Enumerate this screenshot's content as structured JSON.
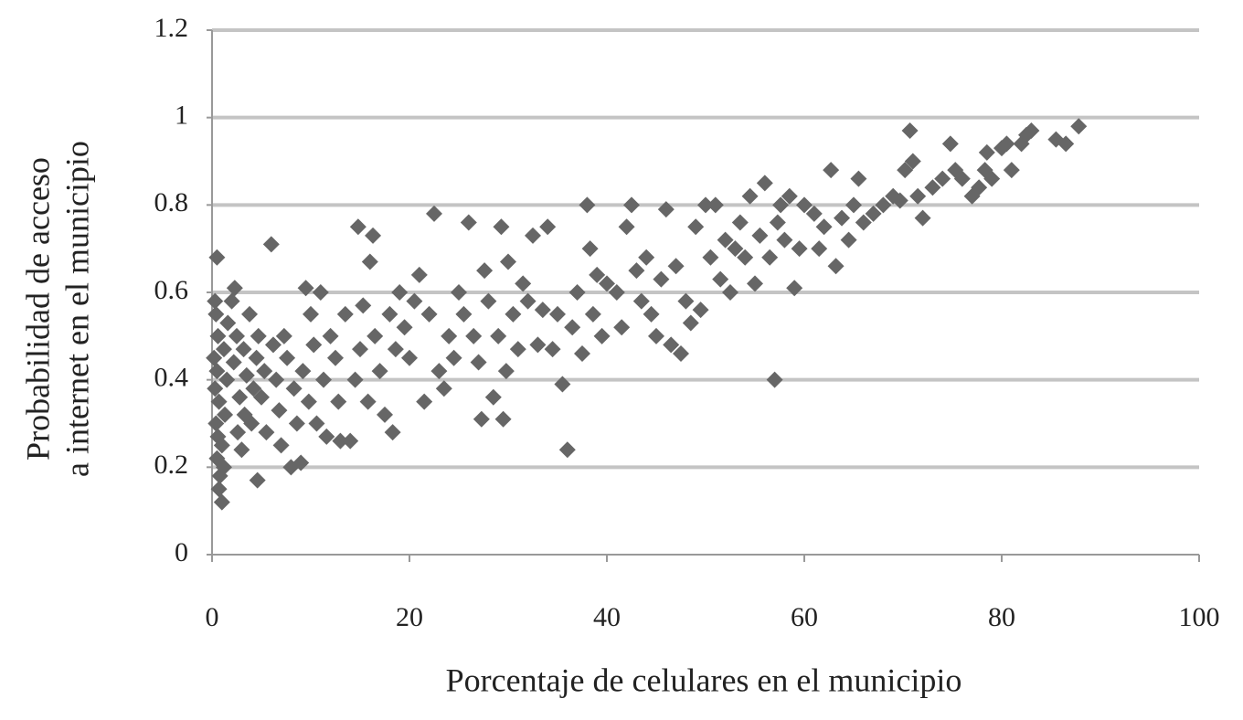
{
  "chart_data": {
    "type": "scatter",
    "x_label": "Porcentaje de celulares en el municipio",
    "y_label": [
      "Probabilidad de acceso",
      "a internet en el municipio"
    ],
    "color": "#666666",
    "grid": true,
    "xlim": [
      0,
      100
    ],
    "xticks": [
      0,
      20,
      40,
      60,
      80,
      100
    ],
    "ylim": [
      0,
      1.2
    ],
    "yticks": [
      0,
      0.2,
      0.4,
      0.6,
      0.8,
      1,
      1.2
    ],
    "x": [
      0.5,
      0.3,
      0.4,
      0.6,
      0.2,
      0.5,
      0.3,
      0.7,
      0.4,
      0.6,
      0.5,
      0.8,
      0.7,
      1.0,
      1.2,
      1.0,
      1.3,
      1.5,
      1.2,
      1.6,
      2,
      2.3,
      2.5,
      2.2,
      2.8,
      2.6,
      3,
      3.3,
      3.5,
      3.2,
      3.8,
      4,
      4.2,
      4.5,
      4.7,
      4.6,
      5,
      5.3,
      5.5,
      6,
      6.2,
      6.5,
      6.8,
      7,
      7.3,
      7.6,
      8,
      8.3,
      8.6,
      9,
      9.2,
      9.5,
      9.8,
      10,
      10.3,
      10.6,
      11,
      11.3,
      11.6,
      12,
      12.5,
      12.8,
      13,
      13.5,
      14,
      14.5,
      14.8,
      15,
      15.3,
      15.8,
      16,
      16.3,
      16.5,
      17,
      17.5,
      18,
      18.3,
      18.6,
      19,
      19.5,
      20,
      20.5,
      21,
      21.5,
      22,
      22.5,
      23,
      23.5,
      24,
      24.5,
      25,
      25.5,
      26,
      26.5,
      27,
      27.3,
      27.6,
      28,
      28.5,
      29,
      29.3,
      29.5,
      29.8,
      30,
      30.5,
      31,
      31.5,
      32,
      32.5,
      33,
      33.5,
      34,
      34.5,
      35,
      35.5,
      36,
      36.5,
      37,
      37.5,
      38,
      38.3,
      38.6,
      39,
      39.5,
      40,
      41,
      41.5,
      42,
      42.5,
      43,
      43.5,
      44,
      44.5,
      45,
      45.5,
      46,
      46.5,
      47,
      47.5,
      48,
      48.5,
      49,
      49.5,
      50,
      50.5,
      51,
      51.5,
      52,
      52.5,
      53,
      53.5,
      54,
      54.5,
      55,
      55.5,
      56,
      56.5,
      57,
      57.3,
      57.6,
      58,
      58.5,
      59,
      59.5,
      60,
      61,
      61.5,
      62,
      62.7,
      63.2,
      63.8,
      64.5,
      65,
      65.5,
      66,
      67,
      68,
      69,
      69.7,
      70.2,
      70.7,
      71,
      71.5,
      72,
      73,
      74,
      74.8,
      75.3,
      76,
      77,
      77.7,
      78.3,
      78.5,
      79,
      80,
      80.5,
      81,
      82,
      82.5,
      83,
      85.5,
      86.5,
      87.8
    ],
    "values": [
      0.68,
      0.58,
      0.55,
      0.5,
      0.45,
      0.42,
      0.38,
      0.35,
      0.3,
      0.27,
      0.22,
      0.18,
      0.15,
      0.12,
      0.2,
      0.25,
      0.32,
      0.4,
      0.47,
      0.53,
      0.58,
      0.61,
      0.5,
      0.44,
      0.36,
      0.28,
      0.24,
      0.32,
      0.41,
      0.47,
      0.55,
      0.3,
      0.38,
      0.45,
      0.5,
      0.17,
      0.36,
      0.42,
      0.28,
      0.71,
      0.48,
      0.4,
      0.33,
      0.25,
      0.5,
      0.45,
      0.2,
      0.38,
      0.3,
      0.21,
      0.42,
      0.61,
      0.35,
      0.55,
      0.48,
      0.3,
      0.6,
      0.4,
      0.27,
      0.5,
      0.45,
      0.35,
      0.26,
      0.55,
      0.26,
      0.4,
      0.75,
      0.47,
      0.57,
      0.35,
      0.67,
      0.73,
      0.5,
      0.42,
      0.32,
      0.55,
      0.28,
      0.47,
      0.6,
      0.52,
      0.45,
      0.58,
      0.64,
      0.35,
      0.55,
      0.78,
      0.42,
      0.38,
      0.5,
      0.45,
      0.6,
      0.55,
      0.76,
      0.5,
      0.44,
      0.31,
      0.65,
      0.58,
      0.36,
      0.5,
      0.75,
      0.31,
      0.42,
      0.67,
      0.55,
      0.47,
      0.62,
      0.58,
      0.73,
      0.48,
      0.56,
      0.75,
      0.47,
      0.55,
      0.39,
      0.24,
      0.52,
      0.6,
      0.46,
      0.8,
      0.7,
      0.55,
      0.64,
      0.5,
      0.62,
      0.6,
      0.52,
      0.75,
      0.8,
      0.65,
      0.58,
      0.68,
      0.55,
      0.5,
      0.63,
      0.79,
      0.48,
      0.66,
      0.46,
      0.58,
      0.53,
      0.75,
      0.56,
      0.8,
      0.68,
      0.8,
      0.63,
      0.72,
      0.6,
      0.7,
      0.76,
      0.68,
      0.82,
      0.62,
      0.73,
      0.85,
      0.68,
      0.4,
      0.76,
      0.8,
      0.72,
      0.82,
      0.61,
      0.7,
      0.8,
      0.78,
      0.7,
      0.75,
      0.88,
      0.66,
      0.77,
      0.72,
      0.8,
      0.86,
      0.76,
      0.78,
      0.8,
      0.82,
      0.81,
      0.88,
      0.97,
      0.9,
      0.82,
      0.77,
      0.84,
      0.86,
      0.94,
      0.88,
      0.86,
      0.82,
      0.84,
      0.88,
      0.92,
      0.86,
      0.93,
      0.94,
      0.88,
      0.94,
      0.96,
      0.97,
      0.95,
      0.94,
      0.98
    ]
  }
}
